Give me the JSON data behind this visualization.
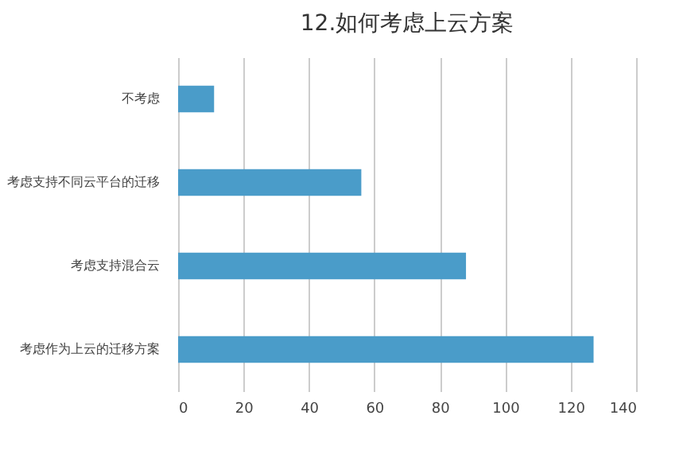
{
  "chart_data": {
    "type": "bar",
    "orientation": "horizontal",
    "title": "12.如何考虑上云方案",
    "categories": [
      "不考虑",
      "考虑支持不同云平台的迁移",
      "考虑支持混合云",
      "考虑作为上云的迁移方案"
    ],
    "values": [
      11,
      56,
      88,
      127
    ],
    "color": "#4a9cc9",
    "xlim": [
      0,
      140
    ],
    "xticks": [
      0,
      20,
      40,
      60,
      80,
      100,
      120,
      140
    ],
    "grid": "x"
  }
}
